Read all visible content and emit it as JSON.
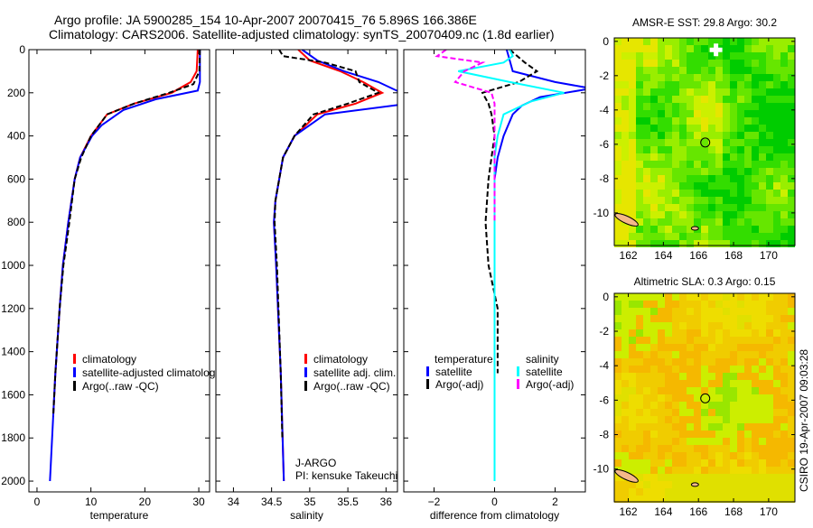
{
  "title_line1": "Argo profile: JA 5900285_154 10-Apr-2007 20070415_76 5.896S 166.386E",
  "title_line2": "Climatology: CARS2006. Satellite-adjusted climatology: synTS_20070409.nc (1.8d earlier)",
  "side_label": "CSIRO 19-Apr-2007 09:03:28",
  "colors": {
    "climatology": "#ff0000",
    "satellite": "#0000ff",
    "argo": "#000000",
    "sal_satellite": "#00ffff",
    "sal_argo": "#ff00ff"
  },
  "chart_data": [
    {
      "type": "line",
      "xlabel": "temperature",
      "xlim": [
        -1.5,
        32
      ],
      "ylim": [
        2050,
        0
      ],
      "xticks": [
        0,
        10,
        20,
        30
      ],
      "yticks": [
        0,
        200,
        400,
        600,
        800,
        1000,
        1200,
        1400,
        1600,
        1800,
        2000
      ],
      "legend": [
        "climatology",
        "satellite-adjusted climatolog",
        "Argo(..raw -QC)"
      ],
      "series": [
        {
          "name": "climatology",
          "color": "climatology",
          "depth": [
            0,
            100,
            150,
            200,
            250,
            300,
            400,
            500,
            600,
            800,
            1000,
            1200,
            1500,
            1700
          ],
          "values": [
            29.8,
            29.6,
            28.5,
            25,
            18,
            13,
            10,
            8,
            7,
            5.8,
            4.8,
            4.2,
            3.4,
            3
          ]
        },
        {
          "name": "satellite-adjusted climatology",
          "color": "satellite",
          "depth": [
            0,
            150,
            190,
            230,
            280,
            350,
            400,
            500,
            600,
            800,
            1000,
            1200,
            1500,
            2000
          ],
          "values": [
            30.2,
            30.2,
            29.8,
            22,
            16,
            12,
            10.2,
            8,
            7,
            5.8,
            4.8,
            4.2,
            3.4,
            2.4
          ]
        },
        {
          "name": "Argo",
          "color": "argo",
          "dashed": true,
          "depth": [
            0,
            100,
            160,
            200,
            250,
            300,
            400,
            500,
            600,
            800,
            1000,
            1200,
            1500,
            1700
          ],
          "values": [
            30.2,
            30.1,
            29,
            24.5,
            18,
            13,
            10,
            8.2,
            7,
            6,
            4.9,
            4.2,
            3.4,
            3
          ]
        }
      ]
    },
    {
      "type": "line",
      "xlabel": "salinity",
      "xlim": [
        33.77,
        36.15
      ],
      "ylim": [
        2050,
        0
      ],
      "xticks": [
        34,
        34.5,
        35,
        35.5,
        36
      ],
      "legend": [
        "climatology",
        "satellite adj. clim.",
        "Argo(..raw -QC)"
      ],
      "annotation": [
        "J-ARGO",
        "PI: kensuke Takeuchi"
      ],
      "series": [
        {
          "name": "climatology",
          "color": "climatology",
          "depth": [
            0,
            50,
            100,
            150,
            200,
            250,
            300,
            400,
            500,
            700,
            800,
            1000,
            1500,
            2000
          ],
          "values": [
            34.85,
            35.0,
            35.4,
            35.7,
            35.95,
            35.6,
            35.1,
            34.8,
            34.65,
            34.55,
            34.53,
            34.56,
            34.62,
            34.66
          ]
        },
        {
          "name": "satellite adj. clim.",
          "color": "satellite",
          "depth": [
            0,
            50,
            100,
            150,
            200,
            250,
            300,
            400,
            500,
            700,
            800,
            1000,
            1500,
            2000
          ],
          "values": [
            34.9,
            35.1,
            35.45,
            35.9,
            36.2,
            36.3,
            35.2,
            34.8,
            34.65,
            34.55,
            34.53,
            34.56,
            34.62,
            34.66
          ]
        },
        {
          "name": "Argo",
          "color": "argo",
          "dashed": true,
          "depth": [
            0,
            30,
            60,
            100,
            150,
            200,
            250,
            300,
            400,
            500,
            700,
            800,
            1000,
            1500,
            1800
          ],
          "values": [
            34.6,
            34.65,
            35.2,
            35.6,
            35.65,
            35.9,
            35.5,
            35.05,
            34.8,
            34.65,
            34.55,
            34.54,
            34.57,
            34.62,
            34.64
          ]
        }
      ]
    },
    {
      "type": "line",
      "xlabel": "difference from climatology",
      "xlim": [
        -3,
        3
      ],
      "ylim": [
        2050,
        0
      ],
      "xticks": [
        -2,
        0,
        2
      ],
      "legend_temperature": {
        "heading": "temperature",
        "items": [
          "satellite",
          "Argo(-adj)"
        ]
      },
      "legend_salinity": {
        "heading": "salinity",
        "items": [
          "satellite",
          "Argo(-adj)"
        ]
      },
      "series": [
        {
          "name": "temperature satellite",
          "color": "satellite",
          "depth": [
            0,
            50,
            100,
            150,
            180,
            220,
            260,
            300,
            400,
            500,
            600,
            800,
            1200,
            1500,
            2000
          ],
          "values": [
            0.4,
            0.5,
            0.6,
            2,
            3.2,
            1.5,
            0.9,
            0.6,
            0.3,
            0.1,
            0,
            0,
            0,
            0,
            0
          ]
        },
        {
          "name": "temperature Argo(-adj)",
          "color": "argo",
          "dashed": true,
          "depth": [
            0,
            60,
            100,
            150,
            200,
            250,
            300,
            400,
            500,
            600,
            800,
            1000,
            1200,
            1500
          ],
          "values": [
            0.5,
            1.0,
            1.4,
            0.8,
            -0.4,
            -0.2,
            -0.1,
            0,
            -0.1,
            -0.2,
            -0.3,
            -0.2,
            0.1,
            0.1
          ]
        },
        {
          "name": "salinity satellite",
          "color": "sal_satellite",
          "depth": [
            0,
            30,
            60,
            100,
            150,
            200,
            240,
            300,
            400,
            500,
            800,
            1200,
            1600,
            2000
          ],
          "values": [
            0.5,
            0.6,
            0.3,
            -1.2,
            0.5,
            2.3,
            1.2,
            0.3,
            0.1,
            0,
            0,
            0,
            0,
            0
          ]
        },
        {
          "name": "salinity Argo(-adj)",
          "color": "sal_argo",
          "dashed": true,
          "depth": [
            0,
            30,
            60,
            100,
            150,
            200,
            250,
            300,
            500,
            800
          ],
          "values": [
            -1.6,
            -1.9,
            -0.4,
            -1.0,
            -1.3,
            -0.1,
            0,
            0,
            0,
            0
          ]
        }
      ]
    },
    {
      "type": "heatmap",
      "title": "AMSR-E SST: 29.8 Argo: 30.2",
      "xlim": [
        161.2,
        171.5
      ],
      "ylim": [
        -11.9,
        0.2
      ],
      "xticks": [
        162,
        164,
        166,
        168,
        170
      ],
      "yticks": [
        0,
        -2,
        -4,
        -6,
        -8,
        -10
      ],
      "argo_position": [
        166.386,
        -5.896
      ]
    },
    {
      "type": "heatmap",
      "title": "Altimetric SLA: 0.3 Argo: 0.15",
      "xlim": [
        161.2,
        171.5
      ],
      "ylim": [
        -11.9,
        0.2
      ],
      "xticks": [
        162,
        164,
        166,
        168,
        170
      ],
      "yticks": [
        0,
        -2,
        -4,
        -6,
        -8,
        -10
      ],
      "argo_position": [
        166.386,
        -5.896
      ]
    }
  ]
}
